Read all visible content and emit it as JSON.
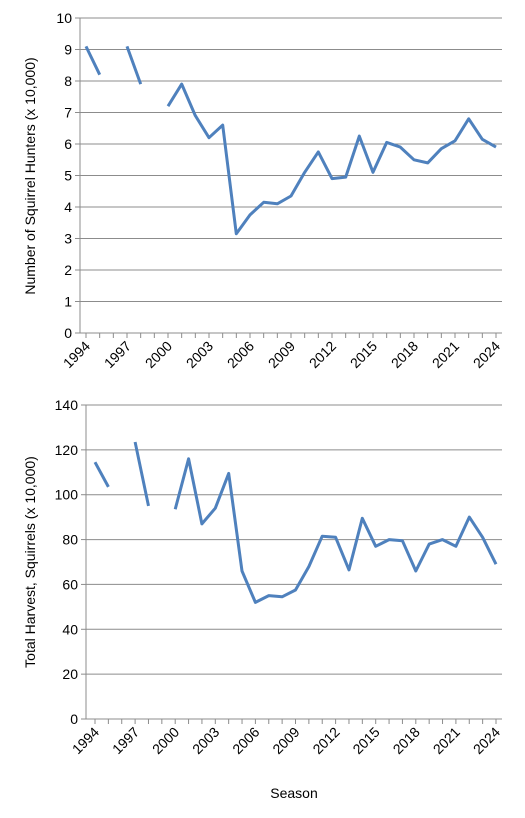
{
  "chart_data": [
    {
      "type": "line",
      "ylabel": "Number of Squirrel Hunters (x 10,000)",
      "xlabel": "",
      "ylim": [
        0,
        10
      ],
      "yticks": [
        0,
        1,
        2,
        3,
        4,
        5,
        6,
        7,
        8,
        9,
        10
      ],
      "xticks": [
        "1994",
        "1997",
        "2000",
        "2003",
        "2006",
        "2009",
        "2012",
        "2015",
        "2018",
        "2021",
        "2024"
      ],
      "x": [
        1994,
        1995,
        1996,
        1997,
        1998,
        1999,
        2000,
        2001,
        2002,
        2003,
        2004,
        2005,
        2006,
        2007,
        2008,
        2009,
        2010,
        2011,
        2012,
        2013,
        2014,
        2015,
        2016,
        2017,
        2018,
        2019,
        2020,
        2021,
        2022,
        2023,
        2024
      ],
      "series": [
        {
          "values": [
            9.1,
            8.2,
            null,
            9.1,
            7.9,
            null,
            7.2,
            7.9,
            6.9,
            6.2,
            6.6,
            3.15,
            3.75,
            4.15,
            4.1,
            4.35,
            5.1,
            5.75,
            4.9,
            4.95,
            6.25,
            5.1,
            6.05,
            5.9,
            5.5,
            5.4,
            5.85,
            6.1,
            6.8,
            6.15,
            5.9
          ]
        }
      ],
      "line_color": "#4f81bd",
      "grid": "horizontal",
      "legend": "none"
    },
    {
      "type": "line",
      "ylabel": "Total Harvest, Squirrels (x 10,000)",
      "xlabel": "Season",
      "ylim": [
        0,
        140
      ],
      "yticks": [
        0,
        20,
        40,
        60,
        80,
        100,
        120,
        140
      ],
      "xticks": [
        "1994",
        "1997",
        "2000",
        "2003",
        "2006",
        "2009",
        "2012",
        "2015",
        "2018",
        "2021",
        "2024"
      ],
      "x": [
        1994,
        1995,
        1996,
        1997,
        1998,
        1999,
        2000,
        2001,
        2002,
        2003,
        2004,
        2005,
        2006,
        2007,
        2008,
        2009,
        2010,
        2011,
        2012,
        2013,
        2014,
        2015,
        2016,
        2017,
        2018,
        2019,
        2020,
        2021,
        2022,
        2023,
        2024
      ],
      "series": [
        {
          "values": [
            114.5,
            103.5,
            null,
            123.5,
            95,
            null,
            93.5,
            116,
            87,
            94,
            109.5,
            66,
            52,
            55,
            54.5,
            57.5,
            68,
            81.5,
            81,
            66.5,
            89.5,
            77,
            80,
            79.5,
            66,
            78,
            80,
            77,
            90,
            81,
            69
          ]
        }
      ],
      "line_color": "#4f81bd",
      "grid": "horizontal",
      "legend": "none"
    }
  ]
}
